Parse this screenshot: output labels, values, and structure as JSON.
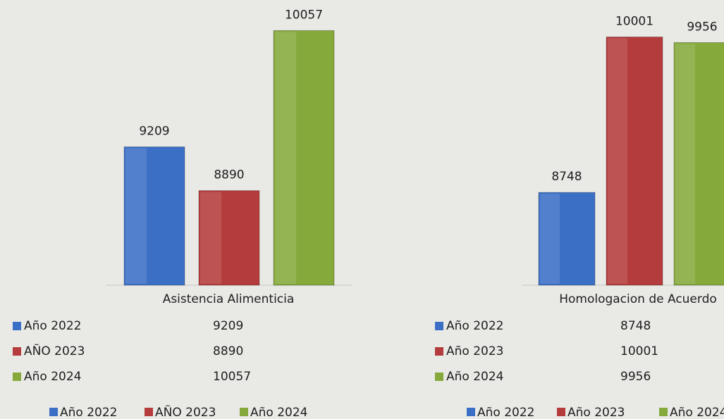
{
  "chart_data": [
    {
      "type": "bar",
      "categories": [
        "Asistencia Alimenticia"
      ],
      "series": [
        {
          "name": "Año 2022",
          "color": "#3b6fc6",
          "values": [
            9209
          ]
        },
        {
          "name": "AÑO 2023",
          "color": "#b43c3c",
          "values": [
            8890
          ]
        },
        {
          "name": "Año 2024",
          "color": "#86a93b",
          "values": [
            10057
          ]
        }
      ],
      "ylim": [
        8200,
        10100
      ]
    },
    {
      "type": "bar",
      "categories": [
        "Homologacion de Acuerdo"
      ],
      "series": [
        {
          "name": "Año 2022",
          "color": "#3b6fc6",
          "values": [
            8748
          ]
        },
        {
          "name": "Año 2023",
          "color": "#b43c3c",
          "values": [
            10001
          ]
        },
        {
          "name": "Año 2024",
          "color": "#86a93b",
          "values": [
            9956
          ]
        }
      ],
      "ylim": [
        8000,
        10100
      ]
    }
  ]
}
